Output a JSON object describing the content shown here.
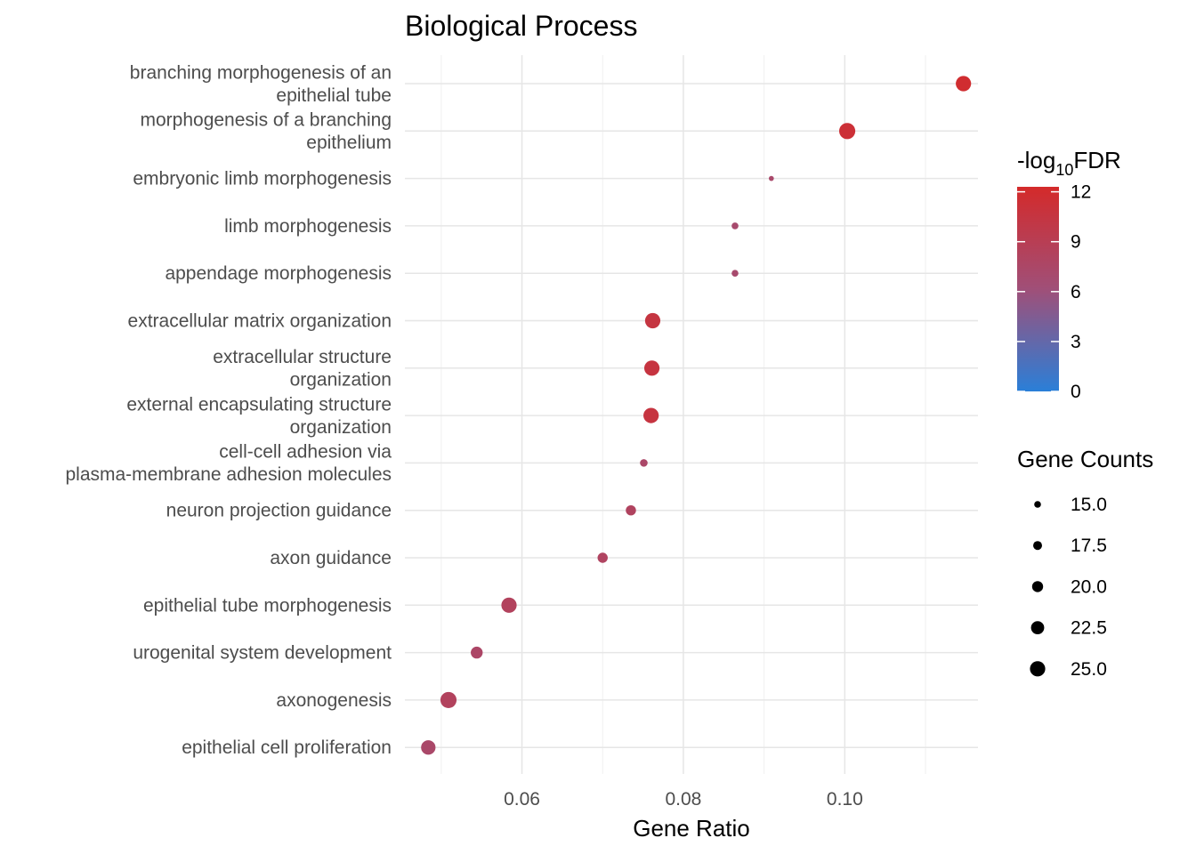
{
  "chart_data": {
    "type": "scatter",
    "title": "Biological Process",
    "xlabel": "Gene Ratio",
    "ylabel": "",
    "xlim": [
      0.0455,
      0.1165
    ],
    "xticks": [
      0.06,
      0.08,
      0.1
    ],
    "xtick_labels": [
      "0.06",
      "0.08",
      "0.10"
    ],
    "grid": true,
    "categories": [
      [
        "branching morphogenesis of an",
        "epithelial tube"
      ],
      [
        "morphogenesis of a branching",
        "epithelium"
      ],
      [
        "embryonic limb morphogenesis"
      ],
      [
        "limb morphogenesis"
      ],
      [
        "appendage morphogenesis"
      ],
      [
        "extracellular matrix organization"
      ],
      [
        "extracellular structure",
        "organization"
      ],
      [
        "external encapsulating structure",
        "organization"
      ],
      [
        "cell-cell adhesion via",
        "plasma-membrane adhesion molecules"
      ],
      [
        "neuron projection guidance"
      ],
      [
        "axon guidance"
      ],
      [
        "epithelial tube morphogenesis"
      ],
      [
        "urogenital system development"
      ],
      [
        "axonogenesis"
      ],
      [
        "epithelial cell proliferation"
      ]
    ],
    "x": [
      0.1147,
      0.1003,
      0.0909,
      0.0864,
      0.0864,
      0.0762,
      0.0761,
      0.076,
      0.0751,
      0.0735,
      0.07,
      0.0584,
      0.0544,
      0.0509,
      0.0484
    ],
    "gene_counts": [
      25,
      26,
      13,
      15,
      15,
      25,
      25,
      25,
      16,
      19,
      19,
      25,
      21,
      26,
      24
    ],
    "neg_log10_fdr": [
      11.8,
      11.3,
      7.2,
      7.0,
      7.0,
      10.5,
      10.6,
      10.6,
      7.4,
      8.1,
      8.0,
      8.3,
      7.6,
      8.3,
      7.3
    ],
    "legend": {
      "color_title_base": "-log",
      "color_title_sub": "10",
      "color_title_tail": "FDR",
      "color_min": 0,
      "color_max": 12.3,
      "color_ticks": [
        0,
        3,
        6,
        9,
        12
      ],
      "color_tick_labels": [
        "0",
        "3",
        "6",
        "9",
        "12"
      ],
      "color_low": "#2a7fd8",
      "color_mid": "#a04f78",
      "color_high": "#d42a2a",
      "size_title": "Gene Counts",
      "size_values": [
        15.0,
        17.5,
        20.0,
        22.5,
        25.0
      ],
      "size_labels": [
        "15.0",
        "17.5",
        "20.0",
        "22.5",
        "25.0"
      ],
      "placement": "right"
    }
  }
}
